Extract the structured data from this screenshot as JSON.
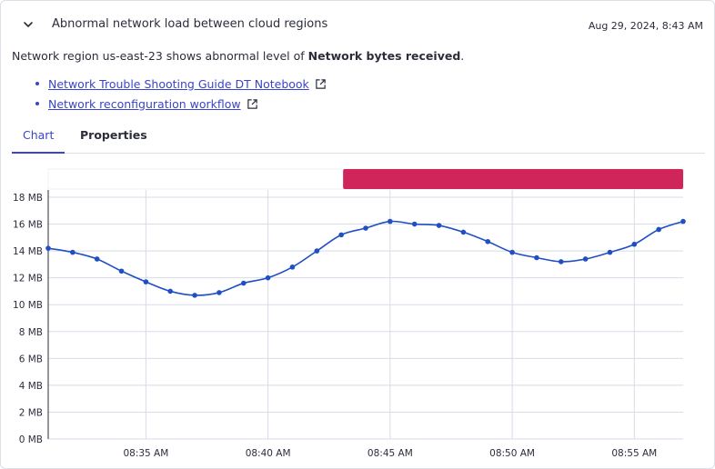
{
  "header": {
    "title": "Abnormal network load between cloud regions",
    "timestamp": "Aug 29, 2024, 8:43 AM"
  },
  "description": {
    "prefix": "Network region us-east-23 shows abnormal level of ",
    "metric": "Network bytes received",
    "suffix": "."
  },
  "links": [
    {
      "label": "Network Trouble Shooting Guide DT Notebook"
    },
    {
      "label": "Network reconfiguration workflow"
    }
  ],
  "tabs": [
    {
      "label": "Chart",
      "active": true
    },
    {
      "label": "Properties",
      "active": false
    }
  ],
  "colors": {
    "accent": "#3a45c9",
    "series": "#1f4fc2",
    "anomaly": "#d0255a"
  },
  "chart_data": {
    "type": "line",
    "y_tick_labels": [
      "0 MB",
      "2 MB",
      "4 MB",
      "6 MB",
      "8 MB",
      "10 MB",
      "12 MB",
      "14 MB",
      "16 MB",
      "18 MB"
    ],
    "x_tick_labels": [
      "08:35 AM",
      "08:40 AM",
      "08:45 AM",
      "08:50 AM",
      "08:55 AM"
    ],
    "ylim": [
      0,
      18
    ],
    "x_minutes_after_0830": [
      1.0,
      2.0,
      3.0,
      4.0,
      5.0,
      6.0,
      7.0,
      8.0,
      9.0,
      10.0,
      11.0,
      12.0,
      13.0,
      14.0,
      15.0,
      16.0,
      17.0,
      18.0,
      19.0,
      20.0,
      21.0,
      22.0,
      23.0,
      24.0,
      25.0,
      26.0,
      27.0
    ],
    "series": [
      {
        "values": [
          14.2,
          13.9,
          13.4,
          12.5,
          11.7,
          11.0,
          10.7,
          10.9,
          11.6,
          12.0,
          12.8,
          14.0,
          15.2,
          15.7,
          16.2,
          16.0,
          15.9,
          15.4,
          14.7,
          13.9,
          13.5,
          13.2,
          13.4,
          13.9,
          14.5,
          15.6,
          16.2
        ]
      }
    ],
    "anomaly_range_minutes": [
      13.0,
      27.0
    ],
    "grid": true
  }
}
